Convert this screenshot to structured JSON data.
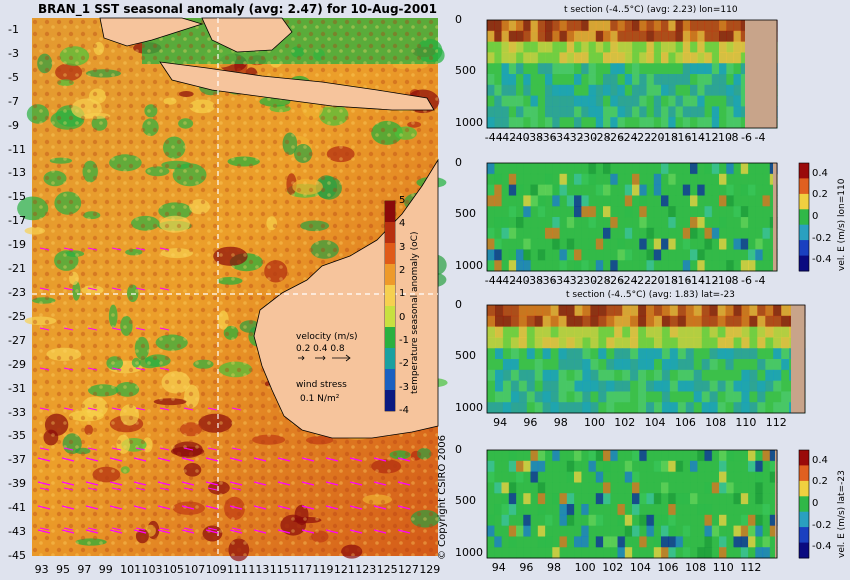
{
  "chart_data": [
    {
      "type": "heatmap",
      "title": "BRAN_1  SST seasonal anomaly  (avg: 2.47) for 10-Aug-2001",
      "x_ticks": [
        "93",
        "95",
        "97",
        "99",
        "101",
        "103",
        "105",
        "107",
        "109",
        "111",
        "113",
        "115",
        "117",
        "119",
        "121",
        "123",
        "125",
        "127",
        "129"
      ],
      "y_ticks": [
        "-1",
        "-3",
        "-5",
        "-7",
        "-9",
        "-11",
        "-13",
        "-15",
        "-17",
        "-19",
        "-21",
        "-23",
        "-25",
        "-27",
        "-29",
        "-31",
        "-33",
        "-35",
        "-37",
        "-39",
        "-41",
        "-43",
        "-45"
      ],
      "xlim": [
        92,
        130
      ],
      "ylim": [
        -45,
        0
      ],
      "section_lines": {
        "lon": 110,
        "lat": -23
      },
      "colorbar": {
        "label": "temperature seasonal anomaly (oC)",
        "ticks": [
          "5",
          "4",
          "3",
          "2",
          "1",
          "0",
          "-1",
          "-2",
          "-3",
          "-4"
        ],
        "range": [
          -4,
          5
        ]
      },
      "legend": {
        "velocity_title": "velocity (m/s)",
        "velocity_scale": "0.2 0.4 0.8",
        "wind_title": "wind stress",
        "wind_value": "0.1 N/m²"
      },
      "copyright": "© Copyright CSIRO 2006"
    },
    {
      "type": "heatmap",
      "title": "t section  (-4..5°C)  (avg: 2.23)  lon=110",
      "x_ticks": [
        "-44",
        "-42",
        "-40",
        "-38",
        "-36",
        "-34",
        "-32",
        "-30",
        "-28",
        "-26",
        "-24",
        "-22",
        "-20",
        "-18",
        "-16",
        "-14",
        "-12",
        "-10",
        "-8",
        "-6",
        "-4"
      ],
      "y_ticks": [
        "0",
        "500",
        "1000"
      ],
      "xlim": [
        -45,
        -2
      ],
      "ylim": [
        0,
        1050
      ]
    },
    {
      "type": "heatmap",
      "title": "",
      "x_ticks": [
        "-44",
        "-42",
        "-40",
        "-38",
        "-36",
        "-34",
        "-32",
        "-30",
        "-28",
        "-26",
        "-24",
        "-22",
        "-20",
        "-18",
        "-16",
        "-14",
        "-12",
        "-10",
        "-8",
        "-6",
        "-4"
      ],
      "y_ticks": [
        "0",
        "500",
        "1000"
      ],
      "xlim": [
        -45,
        -2
      ],
      "ylim": [
        0,
        1050
      ],
      "colorbar": {
        "label": "vel. E (m/s)  lon=110",
        "ticks": [
          "0.4",
          "0.2",
          "0",
          "-0.2",
          "-0.4"
        ],
        "range": [
          -0.5,
          0.5
        ]
      }
    },
    {
      "type": "heatmap",
      "title": "t section  (-4..5°C)  (avg: 1.83)  lat=-23",
      "x_ticks": [
        "94",
        "96",
        "98",
        "100",
        "102",
        "104",
        "106",
        "108",
        "110",
        "112"
      ],
      "y_ticks": [
        "0",
        "500",
        "1000"
      ],
      "xlim": [
        93,
        114
      ],
      "ylim": [
        0,
        1050
      ]
    },
    {
      "type": "heatmap",
      "title": "",
      "x_ticks": [
        "94",
        "96",
        "98",
        "100",
        "102",
        "104",
        "106",
        "108",
        "110",
        "112"
      ],
      "y_ticks": [
        "0",
        "500",
        "1000"
      ],
      "xlim": [
        93,
        114
      ],
      "ylim": [
        0,
        1050
      ],
      "colorbar": {
        "label": "vel. E (m/s)  lat=-23",
        "ticks": [
          "0.4",
          "0.2",
          "0",
          "-0.2",
          "-0.4"
        ],
        "range": [
          -0.5,
          0.5
        ]
      }
    }
  ],
  "colors": {
    "background": "#dfe3ee",
    "land": "#f6c49c",
    "section_land": "#c8a48a",
    "vector": "#ff00ff"
  }
}
